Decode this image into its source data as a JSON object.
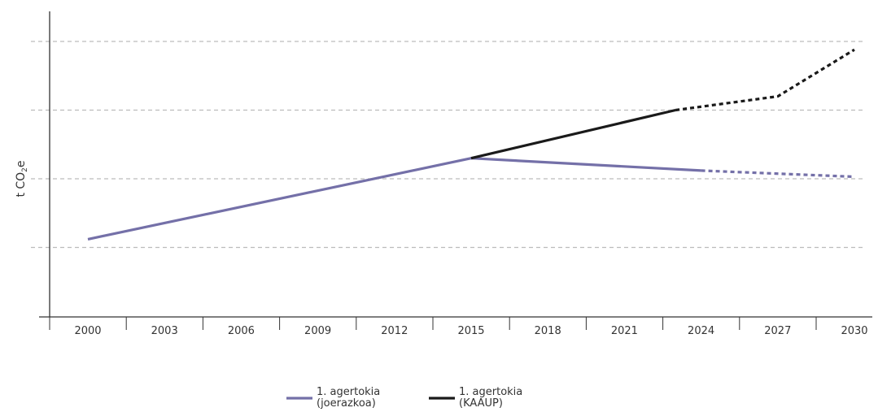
{
  "chart_data": {
    "type": "line",
    "title": "",
    "xlabel": "",
    "ylabel": "t CO₂e",
    "x_ticks": [
      "2000",
      "2003",
      "2006",
      "2009",
      "2012",
      "2015",
      "2018",
      "2021",
      "2024",
      "2027",
      "2030"
    ],
    "xlim": [
      2000,
      2030
    ],
    "ylim": [
      0,
      4
    ],
    "y_gridlines": [
      1,
      2,
      3,
      4
    ],
    "grid": true,
    "legend_placement": "bottom-center",
    "series": [
      {
        "name": "1. agertokia (joerazkoa)",
        "color": "#7470a8",
        "solid": [
          [
            2000,
            1.12
          ],
          [
            2015,
            2.3
          ],
          [
            2024,
            2.12
          ]
        ],
        "dashed": [
          [
            2024,
            2.12
          ],
          [
            2030,
            2.03
          ]
        ]
      },
      {
        "name": "1. agertokia (KAAUP)",
        "color": "#1a1a1a",
        "solid": [
          [
            2015,
            2.3
          ],
          [
            2023,
            3.0
          ]
        ],
        "dashed": [
          [
            2023,
            3.0
          ],
          [
            2027,
            3.2
          ],
          [
            2030,
            3.88
          ]
        ]
      }
    ]
  }
}
